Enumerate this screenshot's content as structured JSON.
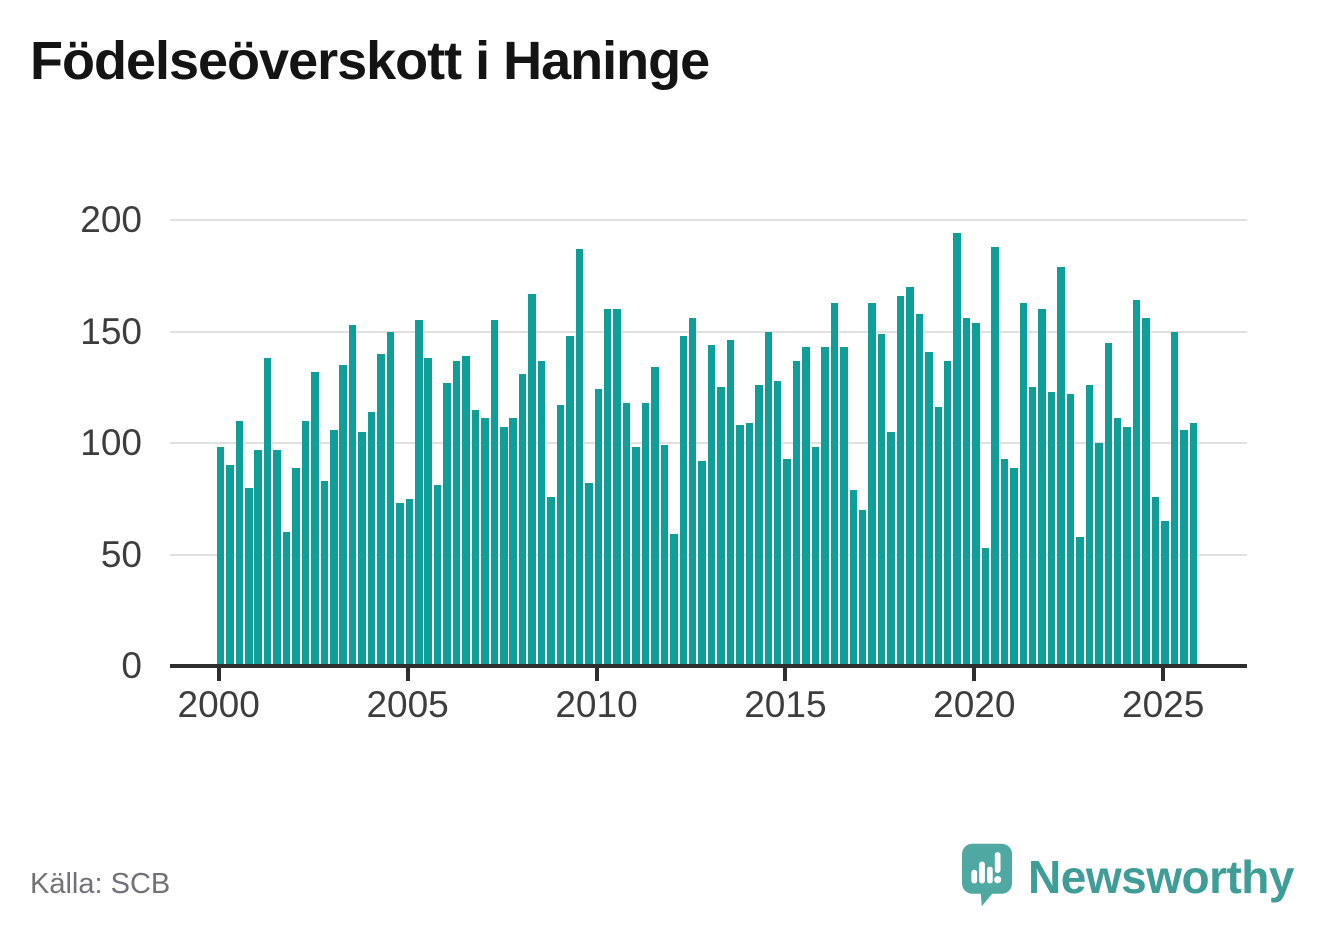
{
  "title": "Födelseöverskott i Haninge",
  "footer": {
    "source": "Källa: SCB"
  },
  "branding": {
    "name": "Newsworthy",
    "logo_icon": "speech-bubble-bar-chart",
    "color": "#4fa8a2"
  },
  "chart_data": {
    "type": "bar",
    "title": "Födelseöverskott i Haninge",
    "frequency": "quarterly",
    "start_year": 2000,
    "end_year": 2025,
    "quarters_per_year": [
      "Q1",
      "Q2",
      "Q3",
      "Q4"
    ],
    "years": [
      {
        "year": 2000,
        "values": [
          98,
          90,
          110,
          80
        ]
      },
      {
        "year": 2001,
        "values": [
          97,
          138,
          97,
          60
        ]
      },
      {
        "year": 2002,
        "values": [
          89,
          110,
          132,
          83
        ]
      },
      {
        "year": 2003,
        "values": [
          106,
          135,
          153,
          105
        ]
      },
      {
        "year": 2004,
        "values": [
          114,
          140,
          150,
          73
        ]
      },
      {
        "year": 2005,
        "values": [
          75,
          155,
          138,
          81
        ]
      },
      {
        "year": 2006,
        "values": [
          127,
          137,
          139,
          115
        ]
      },
      {
        "year": 2007,
        "values": [
          111,
          155,
          107,
          111
        ]
      },
      {
        "year": 2008,
        "values": [
          131,
          167,
          137,
          76
        ]
      },
      {
        "year": 2009,
        "values": [
          117,
          148,
          187,
          82
        ]
      },
      {
        "year": 2010,
        "values": [
          124,
          160,
          160,
          118
        ]
      },
      {
        "year": 2011,
        "values": [
          98,
          118,
          134,
          99
        ]
      },
      {
        "year": 2012,
        "values": [
          59,
          148,
          156,
          92
        ]
      },
      {
        "year": 2013,
        "values": [
          144,
          125,
          146,
          108
        ]
      },
      {
        "year": 2014,
        "values": [
          109,
          126,
          150,
          128
        ]
      },
      {
        "year": 2015,
        "values": [
          93,
          137,
          143,
          98
        ]
      },
      {
        "year": 2016,
        "values": [
          143,
          163,
          143,
          79
        ]
      },
      {
        "year": 2017,
        "values": [
          70,
          163,
          149,
          105
        ]
      },
      {
        "year": 2018,
        "values": [
          166,
          170,
          158,
          141
        ]
      },
      {
        "year": 2019,
        "values": [
          116,
          137,
          194,
          156
        ]
      },
      {
        "year": 2020,
        "values": [
          154,
          53,
          188,
          93
        ]
      },
      {
        "year": 2021,
        "values": [
          89,
          163,
          125,
          160
        ]
      },
      {
        "year": 2022,
        "values": [
          123,
          179,
          122,
          58
        ]
      },
      {
        "year": 2023,
        "values": [
          126,
          100,
          145,
          111
        ]
      },
      {
        "year": 2024,
        "values": [
          107,
          164,
          156,
          76
        ]
      },
      {
        "year": 2025,
        "values": [
          65,
          150,
          106,
          109
        ]
      }
    ],
    "xlabel": "",
    "ylabel": "",
    "ylim": [
      0,
      200
    ],
    "yticks": [
      0,
      50,
      100,
      150,
      200
    ],
    "xticks": [
      2000,
      2005,
      2010,
      2015,
      2020,
      2025
    ],
    "bar_color": "#0f9f98",
    "grid": true,
    "legend": "none"
  }
}
